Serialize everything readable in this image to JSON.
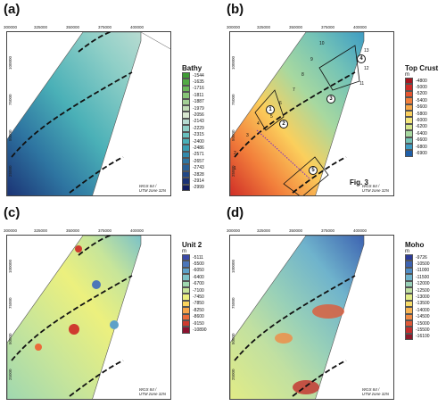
{
  "panels": [
    {
      "label": "(a)",
      "legend": {
        "title": "Bathy",
        "unit": "",
        "labels": [
          "-1544",
          "-1635",
          "-1716",
          "-1811",
          "-1887",
          "-1979",
          "-2056",
          "-2143",
          "-2229",
          "-2315",
          "-2400",
          "-2486",
          "-2571",
          "-2657",
          "-2743",
          "-2828",
          "-2914",
          "-2999"
        ],
        "colors": [
          "#3f9c35",
          "#52aa44",
          "#6bb85a",
          "#86c476",
          "#a4d096",
          "#c1dcb6",
          "#d8e7d0",
          "#b7dbd1",
          "#8fcfc7",
          "#68c0be",
          "#4ab0b7",
          "#3a9eb2",
          "#338aab",
          "#2e75a1",
          "#295f95",
          "#234886",
          "#1b3274",
          "#131e60"
        ]
      },
      "x_ticks": [
        "300000",
        "325000",
        "350000",
        "375000",
        "400000"
      ],
      "y_ticks": [
        "100000",
        "75000",
        "50000",
        "25000"
      ],
      "projection": [
        "WGS 84 /",
        "UTM zone 32N"
      ]
    },
    {
      "label": "(b)",
      "legend": {
        "title": "Top Crust",
        "unit": "m",
        "labels": [
          "-4800",
          "-5000",
          "-5200",
          "-5400",
          "-5600",
          "-5800",
          "-6000",
          "-6200",
          "-6400",
          "-6600",
          "-6800",
          "-6900"
        ],
        "colors": [
          "#a6161f",
          "#cf2c27",
          "#e6552f",
          "#f27f3b",
          "#f7a748",
          "#fbcf5c",
          "#f5e77c",
          "#d5e58a",
          "#a7d8a0",
          "#74c3b6",
          "#3f9dc4",
          "#1f5fa8"
        ]
      },
      "x_ticks": [
        "300000",
        "325000",
        "350000",
        "375000",
        "400000"
      ],
      "y_ticks": [
        "100000",
        "75000",
        "50000",
        "25000"
      ],
      "projection": [
        "WGS 84 /",
        "UTM zone 32N"
      ],
      "line_numbers": [
        "1",
        "2",
        "3",
        "4",
        "5",
        "6",
        "7",
        "8",
        "9",
        "10",
        "11",
        "12",
        "13"
      ],
      "area_numbers": [
        "1",
        "2",
        "3",
        "4",
        "5"
      ],
      "fig_ref": "Fig. 3"
    },
    {
      "label": "(c)",
      "legend": {
        "title": "Unit 2",
        "unit": "m",
        "labels": [
          "-5111",
          "-5500",
          "-6050",
          "-6400",
          "-6700",
          "-7100",
          "-7450",
          "-7850",
          "-8250",
          "-8600",
          "-9150",
          "-10890"
        ],
        "colors": [
          "#3b4aa8",
          "#4c76b8",
          "#5ea1c8",
          "#7cc2c8",
          "#9fd7b0",
          "#c7e59a",
          "#ecf07e",
          "#fad45e",
          "#f6a44a",
          "#ea6a3a",
          "#cf3b2f",
          "#8c1230"
        ]
      },
      "x_ticks": [
        "300000",
        "325000",
        "350000",
        "375000",
        "400000"
      ],
      "y_ticks": [
        "100000",
        "75000",
        "50000",
        "25000"
      ],
      "projection": [
        "WGS 84 /",
        "UTM zone 32N"
      ]
    },
    {
      "label": "(d)",
      "legend": {
        "title": "Moho",
        "unit": "m",
        "labels": [
          "-9726",
          "-10500",
          "-11000",
          "-11500",
          "-12000",
          "-12500",
          "-13000",
          "-13500",
          "-14000",
          "-14500",
          "-15000",
          "-15500",
          "-16100"
        ],
        "colors": [
          "#2c3c9a",
          "#3d63b1",
          "#4f8cc4",
          "#6fb3cc",
          "#98d0b8",
          "#c1e0a1",
          "#e2ec86",
          "#f8dc68",
          "#f9b453",
          "#f18a44",
          "#e05937",
          "#c42e2c",
          "#8e1a2a"
        ]
      },
      "x_ticks": [
        "300000",
        "325000",
        "350000",
        "375000",
        "400000"
      ],
      "y_ticks": [
        "100000",
        "75000",
        "50000",
        "25000"
      ],
      "projection": [
        "WGS 84 /",
        "UTM zone 32N"
      ]
    }
  ]
}
